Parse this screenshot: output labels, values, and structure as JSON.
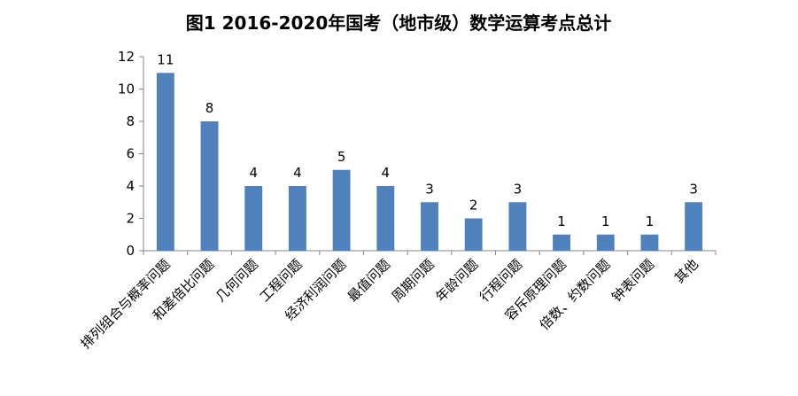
{
  "chart_data": {
    "type": "bar",
    "title": "图1  2016-2020年国考（地市级）数学运算考点总计",
    "xlabel": "",
    "ylabel": "",
    "ylim": [
      0,
      12
    ],
    "yticks": [
      0,
      2,
      4,
      6,
      8,
      10,
      12
    ],
    "yticks_labels": [
      "0",
      "2",
      "4",
      "6",
      "8",
      "10",
      "12"
    ],
    "grid": false,
    "legend": "none",
    "bar_color": "#4f81bd",
    "categories": [
      "排列组合与概率问题",
      "和差倍比问题",
      "几何问题",
      "工程问题",
      "经济利润问题",
      "最值问题",
      "周期问题",
      "年龄问题",
      "行程问题",
      "容斥原理问题",
      "倍数、约数问题",
      "钟表问题",
      "其他"
    ],
    "values": [
      11,
      8,
      4,
      4,
      5,
      4,
      3,
      2,
      3,
      1,
      1,
      1,
      3
    ],
    "value_labels": [
      "11",
      "8",
      "4",
      "4",
      "5",
      "4",
      "3",
      "2",
      "3",
      "1",
      "1",
      "1",
      "3"
    ]
  }
}
